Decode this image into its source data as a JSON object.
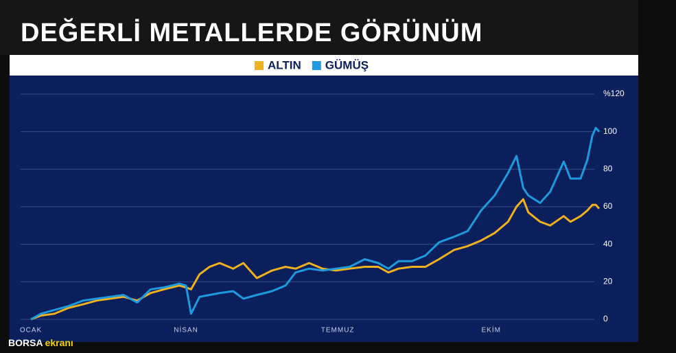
{
  "chart_data": {
    "type": "line",
    "title": "DEĞERLİ METALLERDE GÖRÜNÜM",
    "x": [
      0,
      6,
      14,
      22,
      31,
      39,
      47,
      55,
      63,
      71,
      79,
      88,
      92,
      95,
      100,
      106,
      112,
      120,
      126,
      134,
      143,
      151,
      157,
      165,
      173,
      181,
      189,
      198,
      206,
      212,
      218,
      226,
      234,
      242,
      251,
      259,
      267,
      275,
      283,
      288,
      292,
      295,
      302,
      308,
      316,
      320,
      326,
      330,
      333,
      335,
      337
    ],
    "xlim": [
      0,
      337
    ],
    "xticks": [
      {
        "value": 0,
        "label": "OCAK"
      },
      {
        "value": 92,
        "label": "NİSAN"
      },
      {
        "value": 182,
        "label": "TEMMUZ"
      },
      {
        "value": 273,
        "label": "EKİM"
      }
    ],
    "series": [
      {
        "name": "ALTIN",
        "color": "#f0b21c",
        "values": [
          0,
          2,
          3,
          6,
          8,
          10,
          11,
          12,
          10,
          14,
          16,
          18,
          17,
          16,
          24,
          28,
          30,
          27,
          30,
          22,
          26,
          28,
          27,
          30,
          27,
          26,
          27,
          28,
          28,
          25,
          27,
          28,
          28,
          32,
          37,
          39,
          42,
          46,
          52,
          60,
          64,
          57,
          52,
          50,
          55,
          52,
          55,
          58,
          61,
          61,
          59
        ]
      },
      {
        "name": "GÜMÜŞ",
        "color": "#1e9be0",
        "values": [
          0,
          3,
          5,
          7,
          10,
          11,
          12,
          13,
          9,
          16,
          17,
          19,
          18,
          3,
          12,
          13,
          14,
          15,
          11,
          13,
          15,
          18,
          25,
          27,
          26,
          27,
          28,
          32,
          30,
          27,
          31,
          31,
          34,
          41,
          44,
          47,
          58,
          66,
          78,
          87,
          70,
          66,
          62,
          68,
          84,
          75,
          75,
          85,
          98,
          102,
          100
        ]
      }
    ],
    "ylim": [
      0,
      120
    ],
    "yticks": [
      0,
      20,
      40,
      60,
      80,
      100,
      {
        "value": 120,
        "label": "%120"
      }
    ],
    "grid": true
  },
  "watermark": {
    "brand": "BORSA",
    "suffix": "ekranı"
  }
}
